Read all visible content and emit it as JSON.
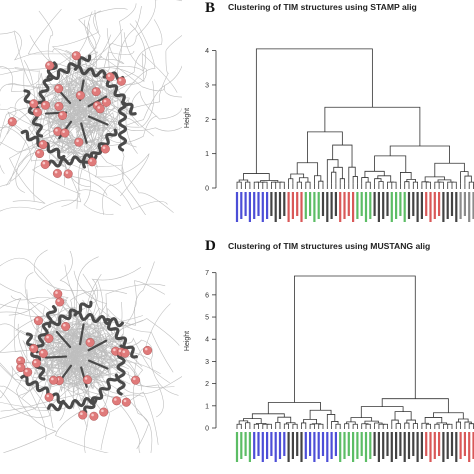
{
  "panels": {
    "b": {
      "letter": "B",
      "title": "Clustering of TIM structures using STAMP alig",
      "ylabel": "Height",
      "yticks": [
        "0",
        "1",
        "2",
        "3",
        "4"
      ],
      "ymax": 4.6
    },
    "d": {
      "letter": "D",
      "title": "Clustering of TIM structures using MUSTANG alig",
      "ylabel": "Height",
      "yticks": [
        "0",
        "1",
        "2",
        "3",
        "4",
        "5",
        "6",
        "7"
      ],
      "ymax": 7.3
    }
  },
  "images": {
    "a": {
      "icon": "protein-structure-overlay-image"
    },
    "c": {
      "icon": "protein-structure-overlay-image"
    }
  },
  "colors": {
    "blue": "#2d2fd0",
    "red": "#d23b3b",
    "green": "#3fb24a",
    "black": "#222222",
    "gray": "#777777"
  }
}
